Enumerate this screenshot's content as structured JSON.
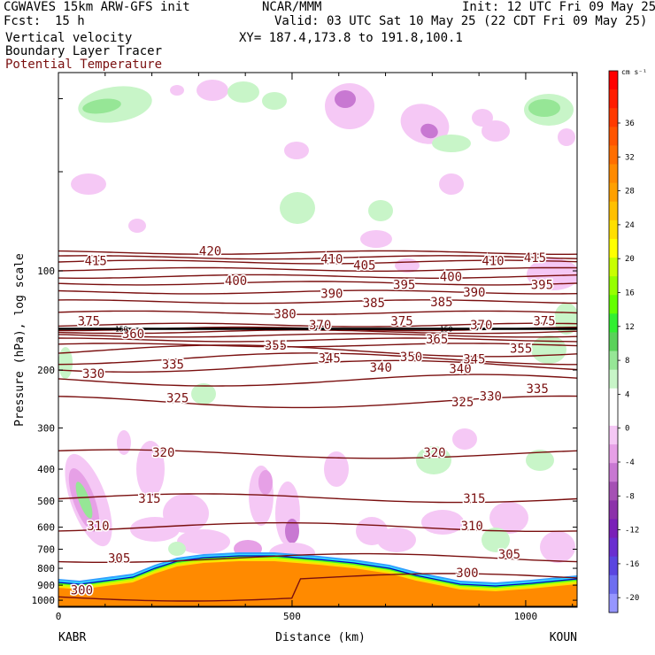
{
  "header": {
    "model": "CGWAVES 15km ARW-GFS init",
    "fcst_label": "Fcst:",
    "fcst_value": "15 h",
    "org": "NCAR/MMM",
    "init": "Init: 12 UTC Fri 09 May 25",
    "valid": "Valid: 03 UTC Sat 10 May 25 (22 CDT Fri 09 May 25)",
    "xy": "XY= 187.4,173.8 to 191.8,100.1",
    "field1": "Vertical velocity",
    "field2": "Boundary Layer Tracer",
    "field3": "Potential Temperature"
  },
  "chart_data": {
    "type": "contour cross-section",
    "xlabel": "Distance (km)",
    "ylabel": "Pressure (hPa), log scale",
    "x_ticks": [
      "0",
      "500",
      "1000"
    ],
    "x_tick_values": [
      0,
      500,
      1000
    ],
    "x_range": [
      0,
      1110
    ],
    "y_ticks": [
      "100",
      "200",
      "300",
      "400",
      "500",
      "600",
      "700",
      "800",
      "900",
      "1000"
    ],
    "y_tick_values": [
      100,
      200,
      300,
      400,
      500,
      600,
      700,
      800,
      900,
      1000
    ],
    "y_range": [
      1050,
      25
    ],
    "y_scale": "log",
    "left_endpoint": "KABR",
    "right_endpoint": "KOUN",
    "colorbar_unit": "cm s⁻¹",
    "colorbar_labels": [
      "36",
      "32",
      "28",
      "24",
      "20",
      "16",
      "12",
      "8",
      "4",
      "0",
      "-4",
      "-8",
      "-12",
      "-16",
      "-20"
    ],
    "colorbar_colors": [
      "#ff0000",
      "#ff1d00",
      "#ff3a00",
      "#ff5500",
      "#ff6e00",
      "#ff8a00",
      "#ffa000",
      "#ffc000",
      "#ffdf00",
      "#ffff00",
      "#c8ff00",
      "#96ff00",
      "#64ff00",
      "#32ef32",
      "#5ad25a",
      "#96e696",
      "#c8f5c8",
      "#ffffff",
      "#ffffff",
      "#f5c8f5",
      "#e6a0e6",
      "#c878d2",
      "#a550b4",
      "#8c32aa",
      "#7a20b8",
      "#6a2ed0",
      "#5a46e0",
      "#6e6ef0",
      "#9696ff"
    ],
    "theta_levels": [
      300,
      305,
      310,
      315,
      320,
      325,
      330,
      335,
      340,
      345,
      350,
      355,
      360,
      365,
      370,
      375,
      380,
      385,
      390,
      395,
      400,
      405,
      410,
      415,
      420
    ],
    "theta_contour_color": "#7a0f0f",
    "tropopause_label": "150",
    "theta_labels": [
      {
        "text": "300",
        "x": 50,
        "p": 930
      },
      {
        "text": "305",
        "x": 130,
        "p": 745
      },
      {
        "text": "310",
        "x": 85,
        "p": 595
      },
      {
        "text": "315",
        "x": 195,
        "p": 490
      },
      {
        "text": "320",
        "x": 225,
        "p": 355
      },
      {
        "text": "325",
        "x": 255,
        "p": 243
      },
      {
        "text": "330",
        "x": 75,
        "p": 205
      },
      {
        "text": "335",
        "x": 245,
        "p": 192
      },
      {
        "text": "340",
        "x": 690,
        "p": 196
      },
      {
        "text": "345",
        "x": 580,
        "p": 184
      },
      {
        "text": "350",
        "x": 755,
        "p": 182
      },
      {
        "text": "355",
        "x": 465,
        "p": 168
      },
      {
        "text": "360",
        "x": 160,
        "p": 155
      },
      {
        "text": "365",
        "x": 810,
        "p": 161
      },
      {
        "text": "370",
        "x": 560,
        "p": 146
      },
      {
        "text": "375",
        "x": 65,
        "p": 142
      },
      {
        "text": "380",
        "x": 485,
        "p": 135
      },
      {
        "text": "385",
        "x": 675,
        "p": 125
      },
      {
        "text": "390",
        "x": 585,
        "p": 117
      },
      {
        "text": "395",
        "x": 740,
        "p": 110
      },
      {
        "text": "400",
        "x": 380,
        "p": 107
      },
      {
        "text": "405",
        "x": 655,
        "p": 96
      },
      {
        "text": "410",
        "x": 585,
        "p": 92
      },
      {
        "text": "415",
        "x": 80,
        "p": 93
      },
      {
        "text": "420",
        "x": 325,
        "p": 87
      },
      {
        "text": "300",
        "x": 875,
        "p": 825
      },
      {
        "text": "305",
        "x": 965,
        "p": 725
      },
      {
        "text": "310",
        "x": 885,
        "p": 595
      },
      {
        "text": "315",
        "x": 890,
        "p": 490
      },
      {
        "text": "320",
        "x": 805,
        "p": 355
      },
      {
        "text": "325",
        "x": 865,
        "p": 250
      },
      {
        "text": "330",
        "x": 925,
        "p": 240
      },
      {
        "text": "335",
        "x": 1025,
        "p": 228
      },
      {
        "text": "340",
        "x": 860,
        "p": 198
      },
      {
        "text": "345",
        "x": 890,
        "p": 185
      },
      {
        "text": "355",
        "x": 990,
        "p": 172
      },
      {
        "text": "370",
        "x": 905,
        "p": 146
      },
      {
        "text": "375",
        "x": 1040,
        "p": 142
      },
      {
        "text": "375",
        "x": 735,
        "p": 142
      },
      {
        "text": "385",
        "x": 820,
        "p": 124
      },
      {
        "text": "390",
        "x": 890,
        "p": 116
      },
      {
        "text": "395",
        "x": 1035,
        "p": 110
      },
      {
        "text": "400",
        "x": 840,
        "p": 104
      },
      {
        "text": "410",
        "x": 930,
        "p": 93
      },
      {
        "text": "415",
        "x": 1020,
        "p": 91
      }
    ],
    "tropopause_marks": [
      {
        "text": "150",
        "x": 135,
        "p": 150
      },
      {
        "text": "150",
        "x": 830,
        "p": 150
      }
    ]
  }
}
